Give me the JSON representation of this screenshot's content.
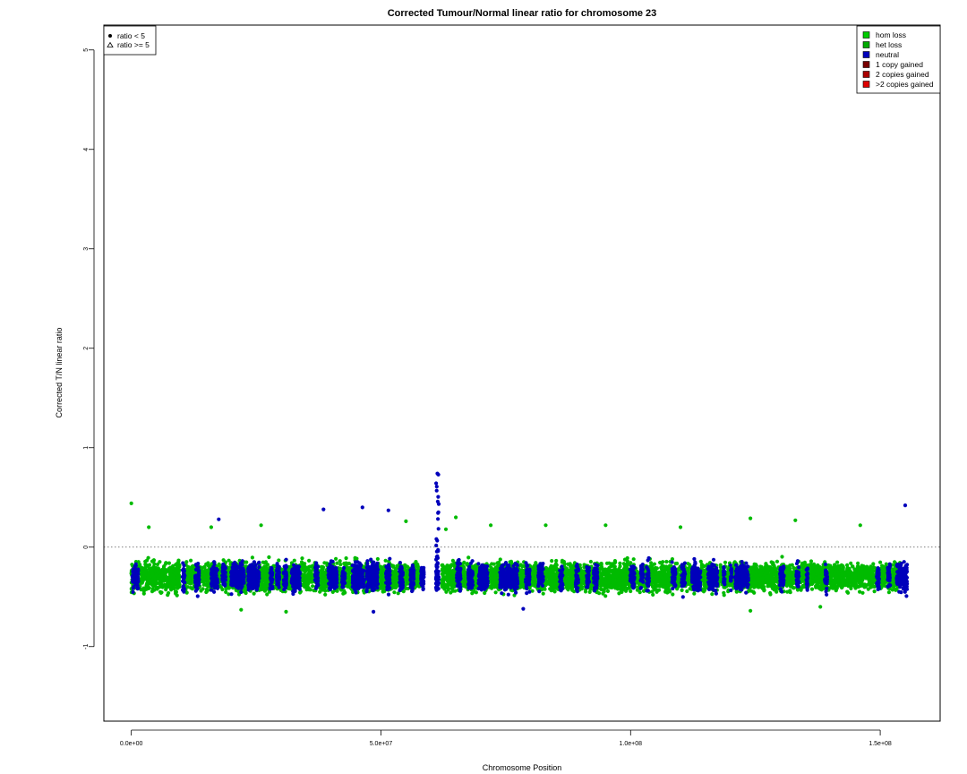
{
  "chart_data": {
    "type": "scatter",
    "title": "Corrected Tumour/Normal linear ratio for chromosome  23",
    "xlabel": "Chromosome Position",
    "ylabel": "Corrected T/N linear ratio",
    "xlim": [
      -5500000,
      162000000
    ],
    "ylim": [
      -1.75,
      5.25
    ],
    "x_ticks": [
      {
        "value": 0,
        "label": "0.0e+00"
      },
      {
        "value": 50000000,
        "label": "5.0e+07"
      },
      {
        "value": 100000000,
        "label": "1.0e+08"
      },
      {
        "value": 150000000,
        "label": "1.5e+08"
      }
    ],
    "y_ticks": [
      {
        "value": -1,
        "label": "-1"
      },
      {
        "value": 0,
        "label": "0"
      },
      {
        "value": 1,
        "label": "1"
      },
      {
        "value": 2,
        "label": "2"
      },
      {
        "value": 3,
        "label": "3"
      },
      {
        "value": 4,
        "label": "4"
      },
      {
        "value": 5,
        "label": "5"
      }
    ],
    "reference_line": {
      "y": 0,
      "style": "dotted"
    },
    "shape_legend": {
      "position": "top-left",
      "items": [
        {
          "label": "ratio < 5",
          "symbol": "filled-circle"
        },
        {
          "label": "ratio >= 5",
          "symbol": "open-triangle"
        }
      ]
    },
    "class_legend": {
      "position": "top-right",
      "items": [
        {
          "label": "hom loss",
          "color": "#00cc00"
        },
        {
          "label": "het loss",
          "color": "#00aa00"
        },
        {
          "label": "neutral",
          "color": "#0000bb"
        },
        {
          "label": "1 copy gained",
          "color": "#7a0000"
        },
        {
          "label": "2 copies gained",
          "color": "#aa0000"
        },
        {
          "label": ">2 copies gained",
          "color": "#dd0000"
        }
      ]
    },
    "series": [
      {
        "name": "het loss",
        "color": "#00bb00",
        "segments": [
          {
            "x": [
              0,
              9700000
            ],
            "y_center": -0.3,
            "y_spread": 0.25
          },
          {
            "x": [
              10600000,
              58000000
            ],
            "y_center": -0.3,
            "y_spread": 0.23
          },
          {
            "x": [
              62200000,
              154000000
            ],
            "y_center": -0.3,
            "y_spread": 0.23
          }
        ],
        "outliers": [
          {
            "x": 0,
            "y": 0.44
          },
          {
            "x": 3500000,
            "y": 0.2
          },
          {
            "x": 16000000,
            "y": 0.2
          },
          {
            "x": 26000000,
            "y": 0.22
          },
          {
            "x": 55000000,
            "y": 0.26
          },
          {
            "x": 63000000,
            "y": 0.18
          },
          {
            "x": 65000000,
            "y": 0.3
          },
          {
            "x": 72000000,
            "y": 0.22
          },
          {
            "x": 83000000,
            "y": 0.22
          },
          {
            "x": 95000000,
            "y": 0.22
          },
          {
            "x": 110000000,
            "y": 0.2
          },
          {
            "x": 124000000,
            "y": 0.29
          },
          {
            "x": 133000000,
            "y": 0.27
          },
          {
            "x": 146000000,
            "y": 0.22
          },
          {
            "x": 22000000,
            "y": -0.63
          },
          {
            "x": 31000000,
            "y": -0.65
          },
          {
            "x": 124000000,
            "y": -0.64
          },
          {
            "x": 138000000,
            "y": -0.6
          }
        ]
      },
      {
        "name": "neutral",
        "color": "#0000bb",
        "bands": [
          [
            200000,
            1400000
          ],
          [
            10200000,
            10700000
          ],
          [
            12800000,
            13600000
          ],
          [
            16000000,
            17300000
          ],
          [
            18200000,
            18900000
          ],
          [
            20000000,
            22600000
          ],
          [
            23400000,
            25600000
          ],
          [
            27800000,
            28300000
          ],
          [
            29100000,
            29700000
          ],
          [
            30500000,
            31100000
          ],
          [
            32100000,
            33800000
          ],
          [
            36800000,
            37400000
          ],
          [
            39400000,
            41200000
          ],
          [
            42200000,
            42800000
          ],
          [
            44300000,
            46600000
          ],
          [
            47100000,
            49400000
          ],
          [
            51000000,
            51800000
          ],
          [
            53700000,
            54400000
          ],
          [
            55900000,
            56600000
          ],
          [
            58000000,
            58600000
          ],
          [
            61000000,
            61600000
          ],
          [
            65200000,
            66000000
          ],
          [
            67500000,
            68400000
          ],
          [
            69500000,
            71400000
          ],
          [
            73800000,
            77400000
          ],
          [
            79000000,
            79800000
          ],
          [
            81500000,
            82500000
          ],
          [
            85800000,
            86400000
          ],
          [
            89000000,
            89600000
          ],
          [
            91200000,
            91700000
          ],
          [
            92600000,
            93400000
          ],
          [
            99900000,
            100800000
          ],
          [
            102000000,
            102500000
          ],
          [
            103200000,
            103700000
          ],
          [
            108300000,
            109000000
          ],
          [
            110200000,
            110900000
          ],
          [
            112300000,
            114000000
          ],
          [
            115500000,
            117400000
          ],
          [
            118600000,
            118900000
          ],
          [
            120000000,
            120300000
          ],
          [
            121000000,
            123600000
          ],
          [
            129900000,
            130700000
          ],
          [
            133200000,
            133700000
          ],
          [
            135200000,
            135500000
          ],
          [
            138900000,
            139400000
          ],
          [
            149300000,
            149800000
          ],
          [
            151500000,
            152000000
          ],
          [
            153300000,
            155400000
          ]
        ],
        "y_center": -0.3,
        "y_spread": 0.22,
        "spike": {
          "x": 61300000,
          "y_max": 0.74
        },
        "outliers": [
          {
            "x": 17500000,
            "y": 0.28
          },
          {
            "x": 38500000,
            "y": 0.38
          },
          {
            "x": 46300000,
            "y": 0.4
          },
          {
            "x": 51500000,
            "y": 0.37
          },
          {
            "x": 155000000,
            "y": 0.42
          },
          {
            "x": 48500000,
            "y": -0.65
          },
          {
            "x": 78500000,
            "y": -0.62
          }
        ]
      }
    ]
  }
}
